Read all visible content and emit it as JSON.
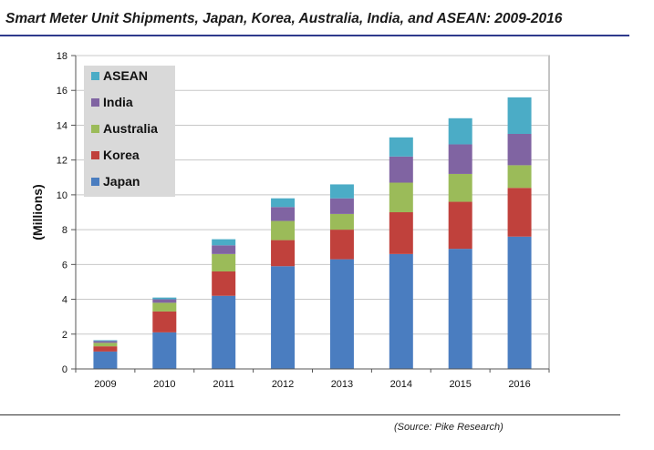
{
  "title": "Smart Meter Unit Shipments, Japan, Korea, Australia, India, and ASEAN:  2009-2016",
  "source": "(Source: Pike Research)",
  "chart_data": {
    "type": "bar",
    "stacked": true,
    "title": "Smart Meter Unit Shipments, Japan, Korea, Australia, India, and ASEAN:  2009-2016",
    "xlabel": "",
    "ylabel": "(Millions)",
    "ylim": [
      0,
      18
    ],
    "yticks": [
      0,
      2,
      4,
      6,
      8,
      10,
      12,
      14,
      16,
      18
    ],
    "grid": true,
    "legend_position": "top-left",
    "categories": [
      "2009",
      "2010",
      "2011",
      "2012",
      "2013",
      "2014",
      "2015",
      "2016"
    ],
    "series": [
      {
        "name": "Japan",
        "color": "#4a7dc0",
        "values": [
          1.0,
          2.1,
          4.2,
          5.9,
          6.3,
          6.6,
          6.9,
          7.6
        ]
      },
      {
        "name": "Korea",
        "color": "#c0413c",
        "values": [
          0.3,
          1.2,
          1.4,
          1.5,
          1.7,
          2.4,
          2.7,
          2.8
        ]
      },
      {
        "name": "Australia",
        "color": "#9bbb59",
        "values": [
          0.2,
          0.5,
          1.0,
          1.1,
          0.9,
          1.7,
          1.6,
          1.3
        ]
      },
      {
        "name": "India",
        "color": "#8064a2",
        "values": [
          0.1,
          0.2,
          0.5,
          0.8,
          0.9,
          1.5,
          1.7,
          1.8
        ]
      },
      {
        "name": "ASEAN",
        "color": "#4bacc6",
        "values": [
          0.05,
          0.1,
          0.35,
          0.5,
          0.8,
          1.1,
          1.5,
          2.1
        ]
      }
    ]
  }
}
